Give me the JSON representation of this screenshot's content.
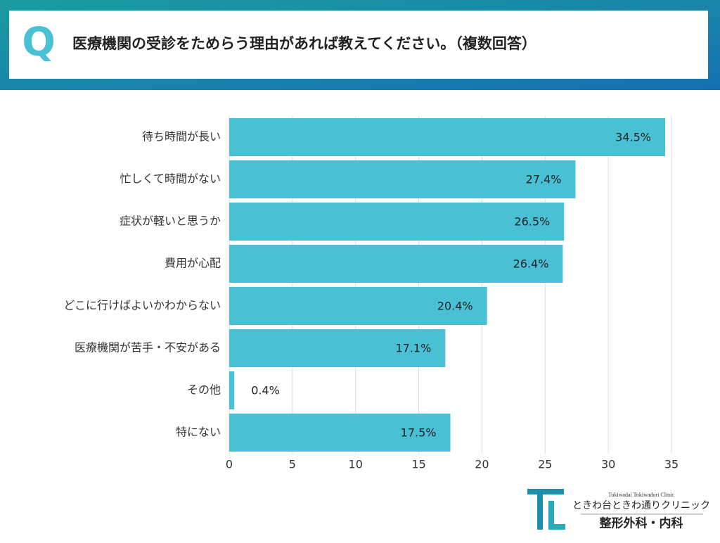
{
  "header": {
    "mark": "Q"
  },
  "chart_data": {
    "type": "bar",
    "orientation": "horizontal",
    "title": "医療機関の受診をためらう理由があれば教えてください。（複数回答）",
    "categories": [
      "待ち時間が長い",
      "忙しくて時間がない",
      "症状が軽いと思うか",
      "費用が心配",
      "どこに行けばよいかわからない",
      "医療機関が苦手・不安がある",
      "その他",
      "特にない"
    ],
    "values": [
      34.5,
      27.4,
      26.5,
      26.4,
      20.4,
      17.1,
      0.4,
      17.5
    ],
    "value_labels": [
      "34.5%",
      "27.4%",
      "26.5%",
      "26.4%",
      "20.4%",
      "17.1%",
      "0.4%",
      "17.5%"
    ],
    "color": "#4ac0d5",
    "xlim": [
      0,
      35
    ],
    "xticks": [
      0,
      5,
      10,
      15,
      20,
      25,
      30,
      35
    ],
    "grid": true
  },
  "logo": {
    "english": "Tokiwadai Tokiwadori Clinic",
    "name": "ときわ台ときわ通りクリニック",
    "departments": "整形外科・内科"
  }
}
